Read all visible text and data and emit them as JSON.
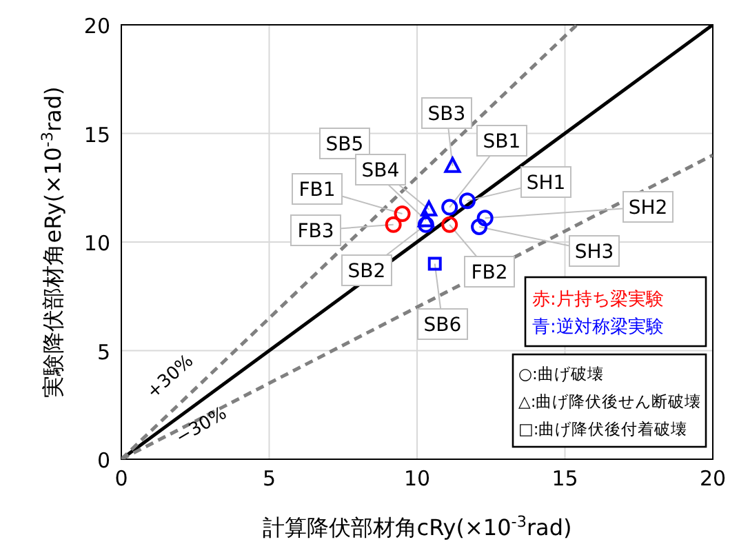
{
  "chart_data": {
    "type": "scatter",
    "xlabel": "計算降伏部材角cRy(×10$^{-3}$rad)",
    "ylabel": "実験降伏部材角eRy(×10$^{-3}$rad)",
    "xlim": [
      0,
      20
    ],
    "ylim": [
      0,
      20
    ],
    "xticks": [
      0,
      5,
      10,
      15,
      20
    ],
    "yticks": [
      0,
      5,
      10,
      15,
      20
    ],
    "grid": true,
    "series": [
      {
        "color": "#ff0000",
        "marker": "circle",
        "x": [
          9.5,
          9.2,
          11.1
        ],
        "values": [
          11.3,
          10.8,
          10.8
        ]
      },
      {
        "color": "#0000ff",
        "marker": "circle",
        "x": [
          10.3,
          11.1,
          11.7,
          12.3,
          12.1
        ],
        "values": [
          10.8,
          11.6,
          11.9,
          11.1,
          10.7
        ]
      },
      {
        "color": "#0000ff",
        "marker": "triangle",
        "x": [
          11.2,
          10.4,
          10.3
        ],
        "values": [
          13.5,
          11.5,
          11.0
        ]
      },
      {
        "color": "#0000ff",
        "marker": "square",
        "x": [
          10.6
        ],
        "values": [
          9.0
        ]
      },
      {
        "type": "line",
        "color": "#000000",
        "line_style": "solid",
        "x": [
          0,
          20
        ],
        "values": [
          0,
          20
        ]
      },
      {
        "type": "line",
        "color": "#808080",
        "line_style": "dashed",
        "x": [
          0,
          15.4
        ],
        "values": [
          0,
          20
        ]
      },
      {
        "type": "line",
        "color": "#808080",
        "line_style": "dashed",
        "x": [
          0,
          20
        ],
        "values": [
          0,
          14
        ]
      }
    ],
    "annotations": [
      {
        "text": "SB3",
        "x": 11.2,
        "y": 13.5
      },
      {
        "text": "SB1",
        "x": 11.1,
        "y": 11.6
      },
      {
        "text": "SB5",
        "x": 10.3,
        "y": 11.0
      },
      {
        "text": "SB4",
        "x": 10.4,
        "y": 11.5
      },
      {
        "text": "FB1",
        "x": 9.5,
        "y": 11.3
      },
      {
        "text": "SH1",
        "x": 11.7,
        "y": 11.9
      },
      {
        "text": "FB3",
        "x": 9.2,
        "y": 10.8
      },
      {
        "text": "SH2",
        "x": 12.3,
        "y": 11.1
      },
      {
        "text": "SB2",
        "x": 10.3,
        "y": 10.8
      },
      {
        "text": "FB2",
        "x": 11.1,
        "y": 10.8
      },
      {
        "text": "SH3",
        "x": 12.1,
        "y": 10.7
      },
      {
        "text": "SB6",
        "x": 10.6,
        "y": 9.0
      },
      "+30%",
      "−30%",
      "赤:片持ち梁実験",
      "青:逆対称梁実験",
      "○:曲げ破壊",
      "△:曲げ降伏後せん断破壊",
      "□:曲げ降伏後付着破壊"
    ]
  }
}
